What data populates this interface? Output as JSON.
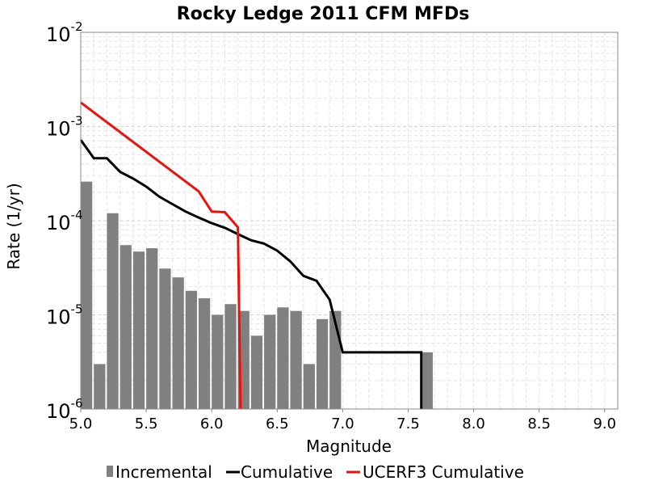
{
  "chart_data": {
    "type": "bar",
    "title": "Rocky Ledge 2011 CFM MFDs",
    "xlabel": "Magnitude",
    "ylabel": "Rate (1/yr)",
    "xlim": [
      5.0,
      9.1
    ],
    "ylim": [
      1e-06,
      0.01
    ],
    "yscale": "log",
    "grid": true,
    "legend_position": "bottom",
    "x_ticks": [
      "5.0",
      "5.5",
      "6.0",
      "6.5",
      "7.0",
      "7.5",
      "8.0",
      "8.5",
      "9.0"
    ],
    "y_ticks": [
      {
        "base": "10",
        "exp": "-6"
      },
      {
        "base": "10",
        "exp": "-5"
      },
      {
        "base": "10",
        "exp": "-4"
      },
      {
        "base": "10",
        "exp": "-3"
      },
      {
        "base": "10",
        "exp": "-2"
      }
    ],
    "series": [
      {
        "name": "Incremental",
        "type": "bar",
        "color": "#808080",
        "x": [
          5.0,
          5.1,
          5.2,
          5.3,
          5.4,
          5.5,
          5.6,
          5.7,
          5.8,
          5.9,
          6.0,
          6.1,
          6.2,
          6.3,
          6.4,
          6.5,
          6.6,
          6.7,
          6.8,
          6.9,
          7.6
        ],
        "values": [
          0.00026,
          3e-06,
          0.00012,
          5.5e-05,
          4.7e-05,
          5.1e-05,
          3.1e-05,
          2.5e-05,
          1.8e-05,
          1.5e-05,
          1e-05,
          1.3e-05,
          1.1e-05,
          6e-06,
          1e-05,
          1.2e-05,
          1.1e-05,
          3e-06,
          9e-06,
          1.1e-05,
          4e-06
        ]
      },
      {
        "name": "Cumulative",
        "type": "line",
        "color": "#000000",
        "x": [
          5.0,
          5.1,
          5.2,
          5.3,
          5.4,
          5.5,
          5.6,
          5.7,
          5.8,
          5.9,
          6.0,
          6.1,
          6.2,
          6.3,
          6.4,
          6.5,
          6.6,
          6.7,
          6.8,
          6.9,
          7.0,
          7.1,
          7.2,
          7.3,
          7.4,
          7.5,
          7.6,
          7.6
        ],
        "values": [
          0.00072,
          0.00046,
          0.00046,
          0.00033,
          0.00028,
          0.00023,
          0.00018,
          0.00015,
          0.000125,
          0.000108,
          9.4e-05,
          8.4e-05,
          7.2e-05,
          6.2e-05,
          5.7e-05,
          4.8e-05,
          3.7e-05,
          2.6e-05,
          2.3e-05,
          1.45e-05,
          4e-06,
          4e-06,
          4e-06,
          4e-06,
          4e-06,
          4e-06,
          4e-06,
          1e-06
        ]
      },
      {
        "name": "UCERF3 Cumulative",
        "type": "line",
        "color": "#e8140c",
        "x": [
          5.0,
          5.9,
          6.0,
          6.1,
          6.2,
          6.22
        ],
        "values": [
          0.0018,
          0.000205,
          0.000125,
          0.000123,
          8.5e-05,
          1e-06
        ]
      }
    ]
  }
}
